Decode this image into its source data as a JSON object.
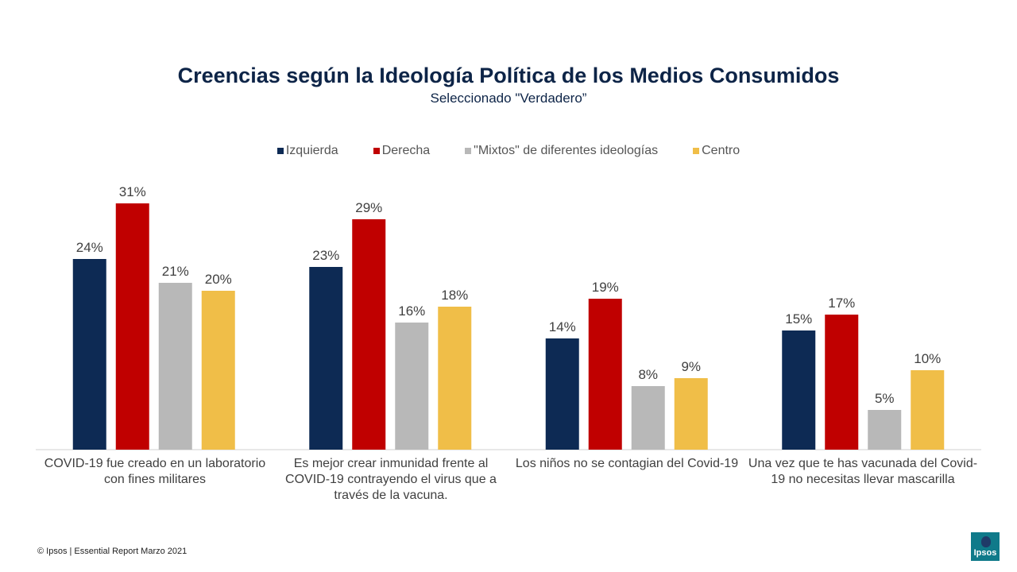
{
  "chart_data": {
    "type": "bar",
    "title": "Creencias según la Ideología Política de los Medios Consumidos",
    "subtitle": "Seleccionado \"Verdadero”",
    "categories": [
      "COVID-19 fue creado en un laboratorio con fines militares",
      "Es mejor crear inmunidad frente al COVID-19 contrayendo el virus que a través de la vacuna.",
      "Los niños no se contagian del Covid-19",
      "Una vez que te has vacunada del Covid-19 no necesitas llevar mascarilla"
    ],
    "series": [
      {
        "name": "Izquierda",
        "color": "#0d2a54",
        "values": [
          24,
          23,
          14,
          15
        ]
      },
      {
        "name": "Derecha",
        "color": "#c00000",
        "values": [
          31,
          29,
          19,
          17
        ]
      },
      {
        "name": "\"Mixtos\" de diferentes ideologías",
        "color": "#b8b8b8",
        "values": [
          21,
          16,
          8,
          5
        ]
      },
      {
        "name": "Centro",
        "color": "#f0be48",
        "values": [
          20,
          18,
          9,
          10
        ]
      }
    ],
    "value_suffix": "%",
    "ylim": [
      0,
      35
    ],
    "grid": false,
    "legend_position": "top"
  },
  "footer": {
    "text": "© Ipsos |  Essential Report  Marzo 2021"
  },
  "logo": {
    "text": "Ipsos"
  }
}
